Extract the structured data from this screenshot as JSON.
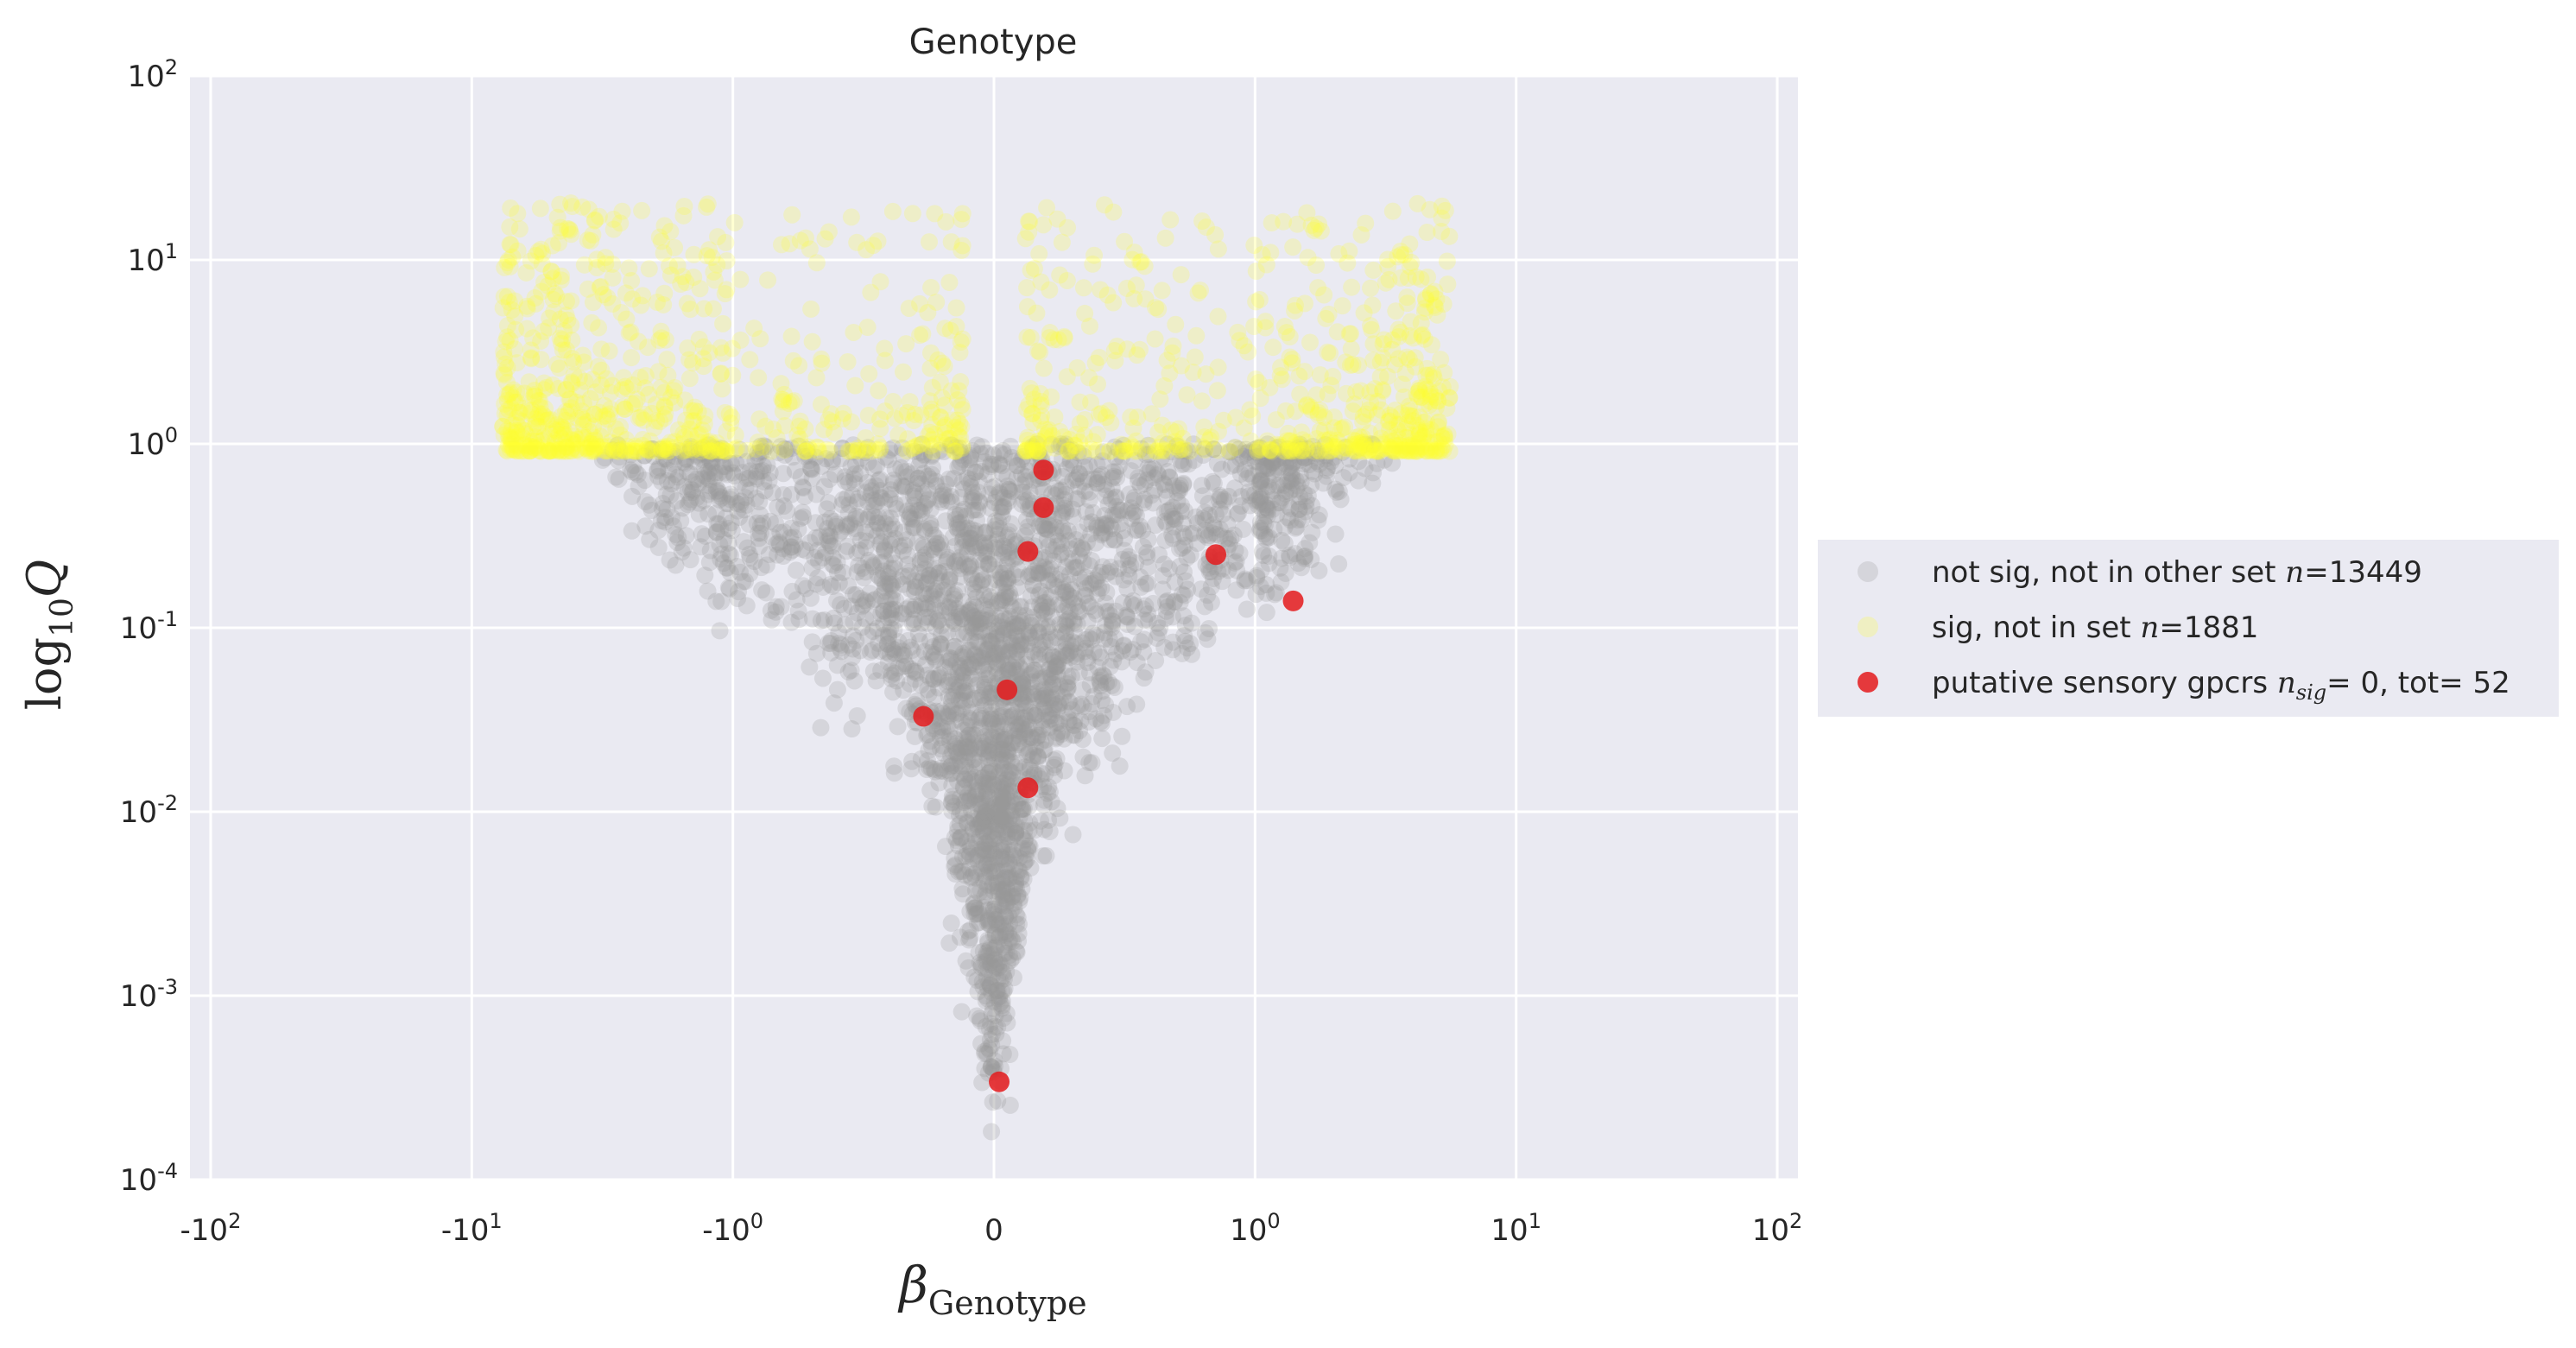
{
  "chart_data": {
    "type": "scatter",
    "title": "Genotype",
    "xlabel": {
      "symbol": "β",
      "subscript": "Genotype"
    },
    "ylabel": {
      "base": "log",
      "subscript": "10",
      "symbol": "Q"
    },
    "xscale": "symlog",
    "yscale": "log",
    "xlim": [
      -120,
      120
    ],
    "ylim": [
      0.0001,
      100
    ],
    "grid": true,
    "legend_position": "outside-right",
    "x_ticks": [
      {
        "value": -100,
        "base": "-10",
        "exp": "2"
      },
      {
        "value": -10,
        "base": "-10",
        "exp": "1"
      },
      {
        "value": -1,
        "base": "-10",
        "exp": "0"
      },
      {
        "value": 0,
        "base": "0",
        "exp": ""
      },
      {
        "value": 1,
        "base": "10",
        "exp": "0"
      },
      {
        "value": 10,
        "base": "10",
        "exp": "1"
      },
      {
        "value": 100,
        "base": "10",
        "exp": "2"
      }
    ],
    "y_ticks": [
      {
        "value": 0.0001,
        "base": "10",
        "exp": "-4"
      },
      {
        "value": 0.001,
        "base": "10",
        "exp": "-3"
      },
      {
        "value": 0.01,
        "base": "10",
        "exp": "-2"
      },
      {
        "value": 0.1,
        "base": "10",
        "exp": "-1"
      },
      {
        "value": 1,
        "base": "10",
        "exp": "0"
      },
      {
        "value": 10,
        "base": "10",
        "exp": "1"
      },
      {
        "value": 100,
        "base": "10",
        "exp": "2"
      }
    ],
    "series": [
      {
        "name": "not sig, not in other set",
        "count_label": "n",
        "count": "=13449",
        "color": "#999999",
        "note": "dense V-shaped cloud of non-significant genes below Q=1"
      },
      {
        "name": "sig, not in set",
        "count_label": "n",
        "count": "=1881",
        "color": "#ffff33",
        "note": "significant genes above Q=1"
      },
      {
        "name": "putative sensory gpcrs",
        "count_label": "n",
        "count_sub": "sig",
        "count": "= 0, tot= 52",
        "color": "#e41a1c",
        "points": [
          {
            "x": 0.19,
            "y": 0.72
          },
          {
            "x": 0.19,
            "y": 0.45
          },
          {
            "x": 0.13,
            "y": 0.26
          },
          {
            "x": 0.85,
            "y": 0.25
          },
          {
            "x": 1.4,
            "y": 0.14
          },
          {
            "x": 0.05,
            "y": 0.046
          },
          {
            "x": -0.27,
            "y": 0.033
          },
          {
            "x": 0.13,
            "y": 0.0135
          },
          {
            "x": 0.02,
            "y": 0.00034
          }
        ]
      }
    ]
  }
}
